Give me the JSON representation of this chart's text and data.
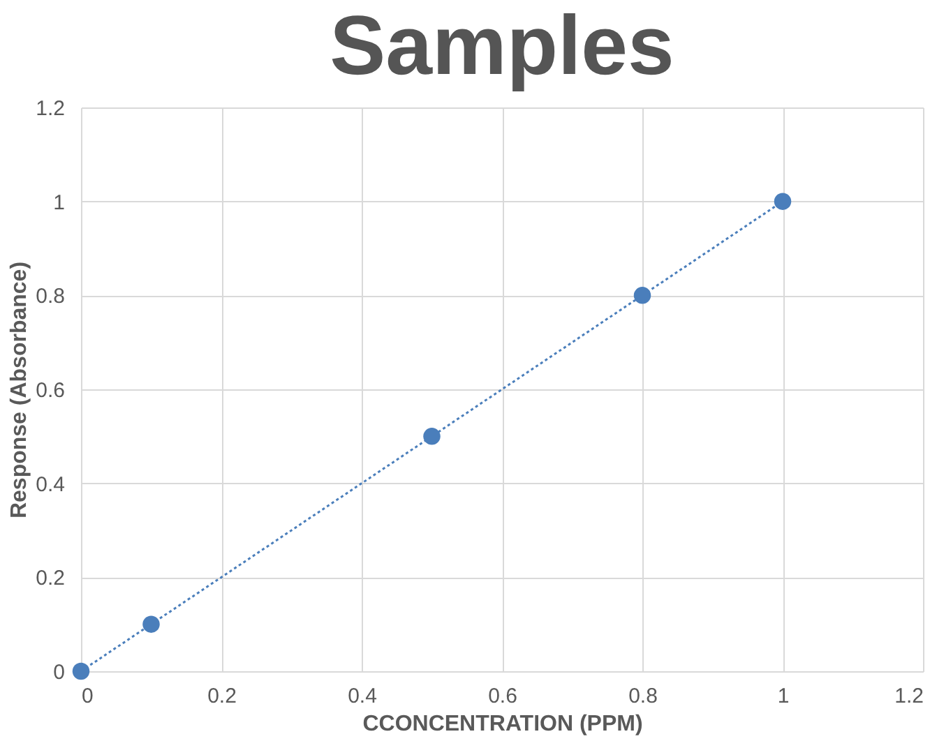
{
  "chart_data": {
    "type": "line",
    "title": "Samples",
    "xlabel": "CCONCENTRATION (PPM)",
    "ylabel": "Response (Absorbance)",
    "x": [
      0,
      0.1,
      0.5,
      0.8,
      1
    ],
    "series": [
      {
        "color": "#4a7ebb",
        "values": [
          0,
          0.1,
          0.5,
          0.8,
          1
        ]
      }
    ],
    "marker": "circle",
    "line_style": "dotted",
    "xlim": [
      0,
      1.2
    ],
    "ylim": [
      0,
      1.2
    ],
    "xticks": [
      0,
      0.2,
      0.4,
      0.6,
      0.8,
      1,
      1.2
    ],
    "yticks": [
      0,
      0.2,
      0.4,
      0.6,
      0.8,
      1,
      1.2
    ],
    "grid": true
  }
}
